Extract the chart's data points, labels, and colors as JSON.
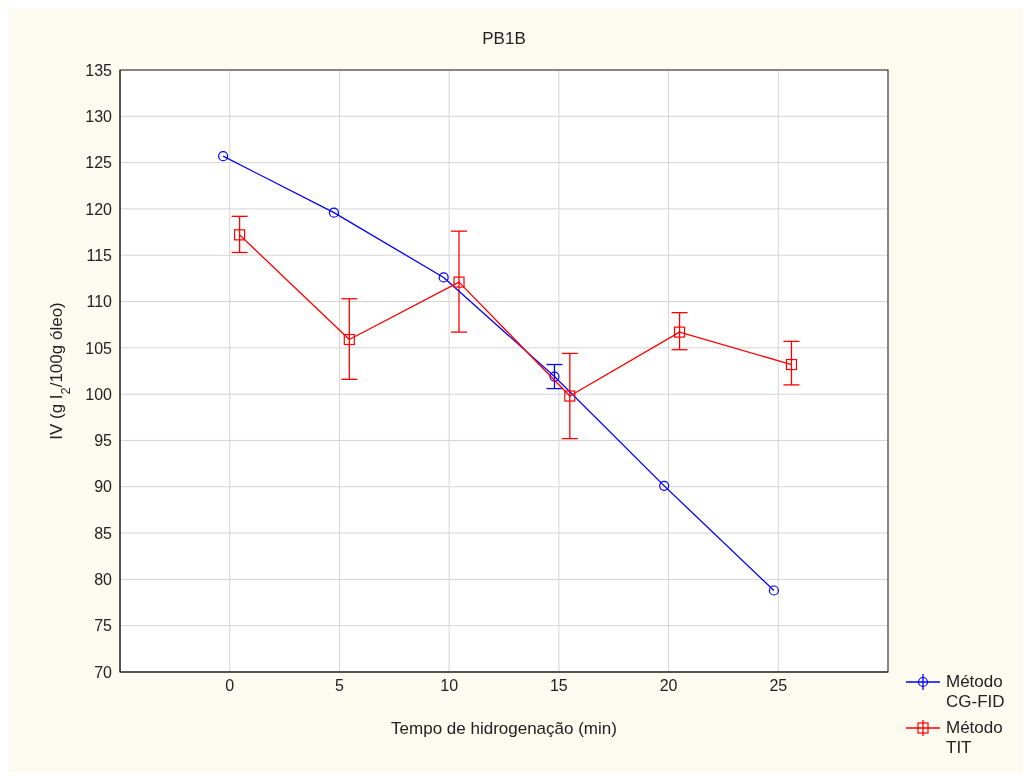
{
  "chart_data": {
    "type": "line",
    "title": "PB1B",
    "xlabel": "Tempo de hidrogenação (min)",
    "ylabel": "IV (g I$_{2}$/100g óleo)",
    "xlim": [
      -5,
      30
    ],
    "xticks": [
      0,
      5,
      10,
      15,
      20,
      25
    ],
    "ylim": [
      70,
      135
    ],
    "yticks": [
      70,
      75,
      80,
      85,
      90,
      95,
      100,
      105,
      110,
      115,
      120,
      125,
      130,
      135
    ],
    "grid": true,
    "legend": "bottom right",
    "series": [
      {
        "name": "Método CG-FID",
        "color": "#0000ff",
        "marker": "circle",
        "x": [
          -0.3,
          4.75,
          9.75,
          14.8,
          19.8,
          24.8
        ],
        "values": [
          125.7,
          119.6,
          112.6,
          101.9,
          90.1,
          78.8
        ],
        "errors": [
          null,
          null,
          null,
          [
            100.6,
            103.2
          ],
          null,
          null
        ]
      },
      {
        "name": "Método TIT",
        "color": "#ff0000",
        "marker": "square",
        "x": [
          0.45,
          5.45,
          10.45,
          15.5,
          20.5,
          25.6
        ],
        "values": [
          117.2,
          105.9,
          112.1,
          99.8,
          106.7,
          103.2
        ],
        "errors": [
          [
            115.3,
            119.2
          ],
          [
            101.6,
            110.3
          ],
          [
            106.7,
            117.6
          ],
          [
            95.2,
            104.4
          ],
          [
            104.8,
            108.8
          ],
          [
            101.0,
            105.7
          ]
        ]
      }
    ]
  }
}
